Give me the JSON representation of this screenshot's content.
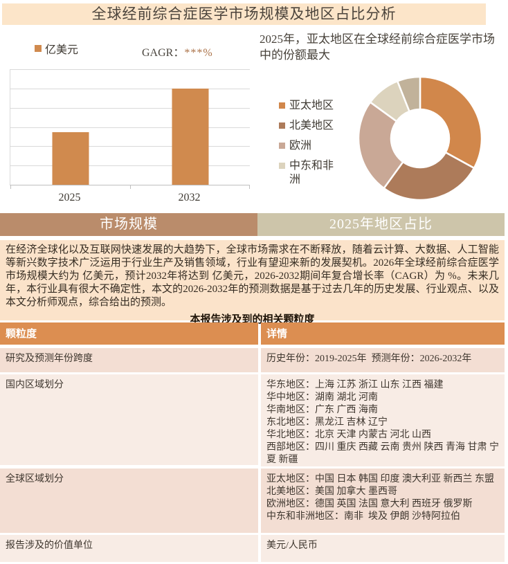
{
  "page": {
    "title": "全球经前综合症医学市场规模及地区占比分析"
  },
  "banners": {
    "left": "市场规模",
    "right": "2025年地区占比"
  },
  "summary": {
    "paragraph": "在经济全球化以及互联网快速发展的大趋势下，全球市场需求在不断释放，随着云计算、大数据、人工智能等新兴数字技术广泛运用于行业生产及销售领域，行业有望迎来新的发展契机。2026年全球经前综合症医学市场规模大约为 亿美元，预计2032年将达到 亿美元，2026-2032期间年复合增长率（CAGR）为 %。未来几年，本行业具有很大不确定性，本文的2026-2032年的预测数据是基于过去几年的历史发展、行业观点、以及本文分析师观点，综合给出的预测。",
    "table_title": "本报告涉及到的相关颗粒度"
  },
  "table": {
    "headers": [
      "颗粒度",
      "详情"
    ],
    "rows": [
      {
        "label": "研究及预测年份跨度",
        "detail_lines": [
          "历史年份：2019-2025年  预测年份：2026-2032年"
        ]
      },
      {
        "label": "国内区域划分",
        "detail_lines": [
          "华东地区：上海 江苏 浙江 山东 江西 福建",
          "华中地区：湖南 湖北 河南",
          "华南地区：广东 广西 海南",
          "东北地区：黑龙江 吉林 辽宁",
          "华北地区：北京 天津 内蒙古 河北 山西",
          "西部地区：四川 重庆 西藏 云南 贵州 陕西 青海 甘肃 宁夏 新疆"
        ]
      },
      {
        "label": "全球区域划分",
        "detail_lines": [
          "亚太地区：中国 日本 韩国 印度 澳大利亚 新西兰 东盟",
          "北美地区：美国 加拿大 墨西哥",
          "欧洲地区：德国 英国 法国 意大利 西班牙 俄罗斯",
          "中东和非洲地区：南非  埃及 伊朗 沙特阿拉伯"
        ]
      },
      {
        "label": "报告涉及的价值单位",
        "detail_lines": [
          "美元/人民币"
        ]
      }
    ]
  },
  "chart_data": [
    {
      "type": "bar",
      "title": "市场规模",
      "legend_label": "亿美元",
      "cagr_label": "GAGR：",
      "cagr_value": "***%",
      "categories": [
        "2025",
        "2032"
      ],
      "values": [
        "***",
        "***"
      ],
      "relative_heights_pct": [
        45.5,
        83.3
      ],
      "bar_color": "#d08a4e",
      "gridline_count": 6,
      "grid": "horizontal",
      "ylabel": "亿美元",
      "note": "values masked with *** in source report; 2032 bar ≈ 1.83× the 2025 bar"
    },
    {
      "type": "pie",
      "donut": true,
      "title": "2025年地区占比",
      "headline": "2025年，亚太地区在全球经前综合症医学市场中的份额最大",
      "slices": [
        {
          "label": "亚太地区",
          "pct": 33,
          "color": "#d1874b"
        },
        {
          "label": "北美地区",
          "pct": 27,
          "color": "#ad7b5a"
        },
        {
          "label": "欧洲",
          "pct": 25,
          "color": "#c9a896"
        },
        {
          "label": "中东和非洲",
          "pct": 9,
          "color": "#dcd3bd"
        },
        {
          "label": "",
          "pct": 6,
          "color": "#c1b29a"
        }
      ],
      "legend_labels": [
        "亚太地区",
        "北美地区",
        "欧洲",
        "中东和非洲"
      ],
      "legend_position": "left",
      "start_angle_deg": 0,
      "inner_radius_ratio": 0.47
    }
  ],
  "colors": {
    "title_bar_bg": "#fce5c9",
    "banner_left_bg": "#ba8c6b",
    "banner_right_bg": "#cdc5aa",
    "summary_bg": "#fbe3ca",
    "table_header_bg": "#dc8e51",
    "row_bg_odd": "#f3ded3",
    "row_bg_even": "#f8ece5",
    "bar_color": "#d08a4e",
    "cagr_value_color": "#ab7248",
    "gridline_color": "#d9d9d9",
    "axis_color": "#bfbfbf",
    "banner_text": "#ffffff",
    "body_text": "#3e362e"
  }
}
